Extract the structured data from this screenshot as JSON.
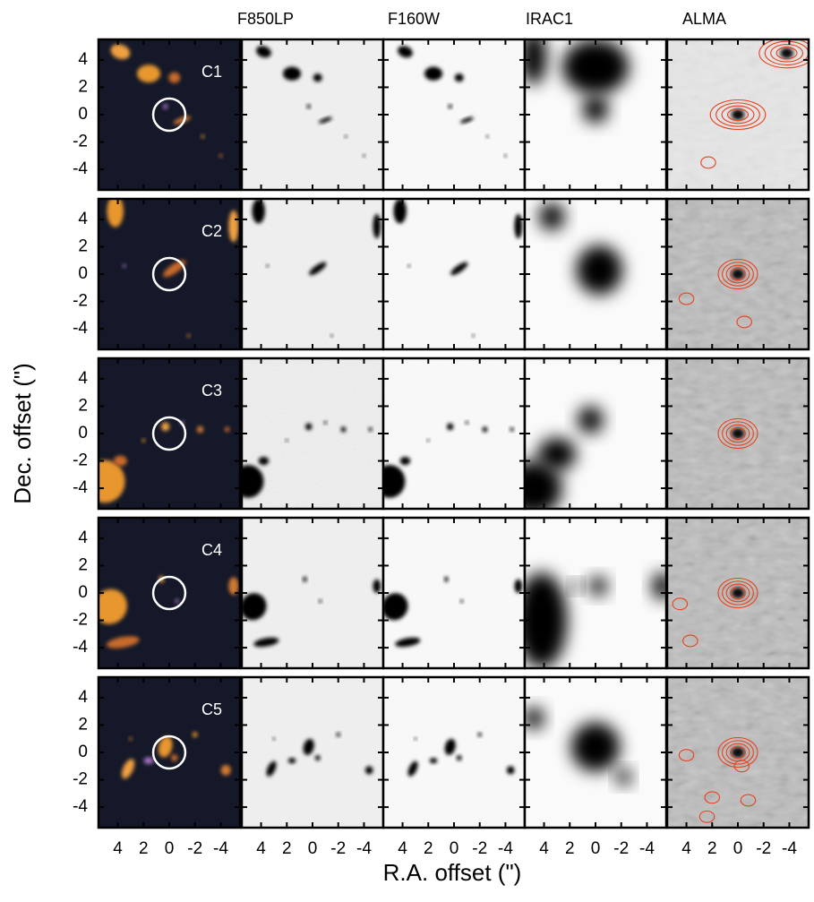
{
  "column_titles": [
    "F850LP",
    "F160W",
    "IRAC1",
    "ALMA"
  ],
  "rows": [
    "C1",
    "C2",
    "C3",
    "C4",
    "C5"
  ],
  "x_axis": {
    "label": "R.A. offset (\")",
    "xlim": [
      5.5,
      -5.5
    ],
    "xticks": [
      4,
      2,
      0,
      -2,
      -4
    ]
  },
  "y_axis": {
    "label": "Dec. offset (\")",
    "ylim": [
      -5.5,
      5.5
    ],
    "yticks": [
      4,
      2,
      0,
      -2,
      -4
    ]
  }
}
